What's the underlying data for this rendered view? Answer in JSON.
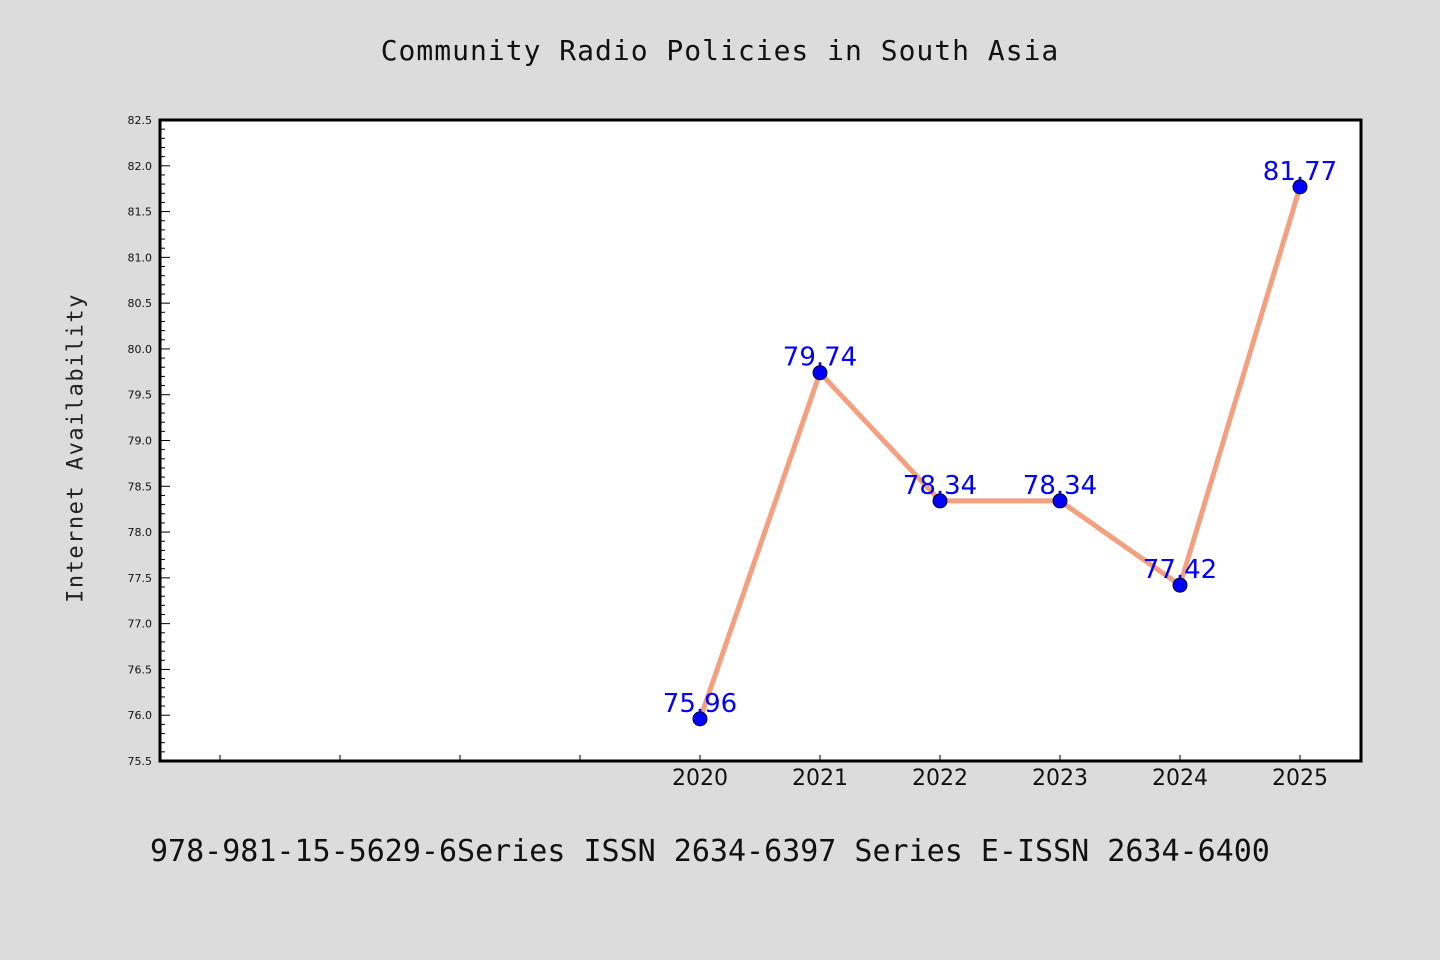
{
  "title": "Community Radio Policies in South Asia",
  "footer": "978-981-15-5629-6Series ISSN 2634-6397 Series E-ISSN 2634-6400",
  "colors": {
    "background": "#dcdcdc",
    "plot_background": "#ffffff",
    "line": "#f4a07f",
    "marker": "#0000ff",
    "data_label": "#0000ff"
  },
  "chart_data": {
    "type": "line",
    "title": "Community Radio Policies in South Asia",
    "xlabel": "",
    "ylabel": "Internet Availability",
    "categories": [
      "2020",
      "2021",
      "2022",
      "2023",
      "2024",
      "2025"
    ],
    "series": [
      {
        "values": [
          75.96,
          79.74,
          78.34,
          78.34,
          77.42,
          81.77
        ],
        "labels": [
          "75.96",
          "79.74",
          "78.34",
          "78.34",
          "77.42",
          "81.77"
        ]
      }
    ],
    "ylim": [
      75.5,
      82.5
    ],
    "yticks": [
      "75.5",
      "76.0",
      "76.5",
      "77.0",
      "77.5",
      "78.0",
      "78.5",
      "79.0",
      "79.5",
      "80.0",
      "80.5",
      "81.0",
      "81.5",
      "82.0",
      "82.5"
    ],
    "grid": false,
    "legend": "none"
  }
}
